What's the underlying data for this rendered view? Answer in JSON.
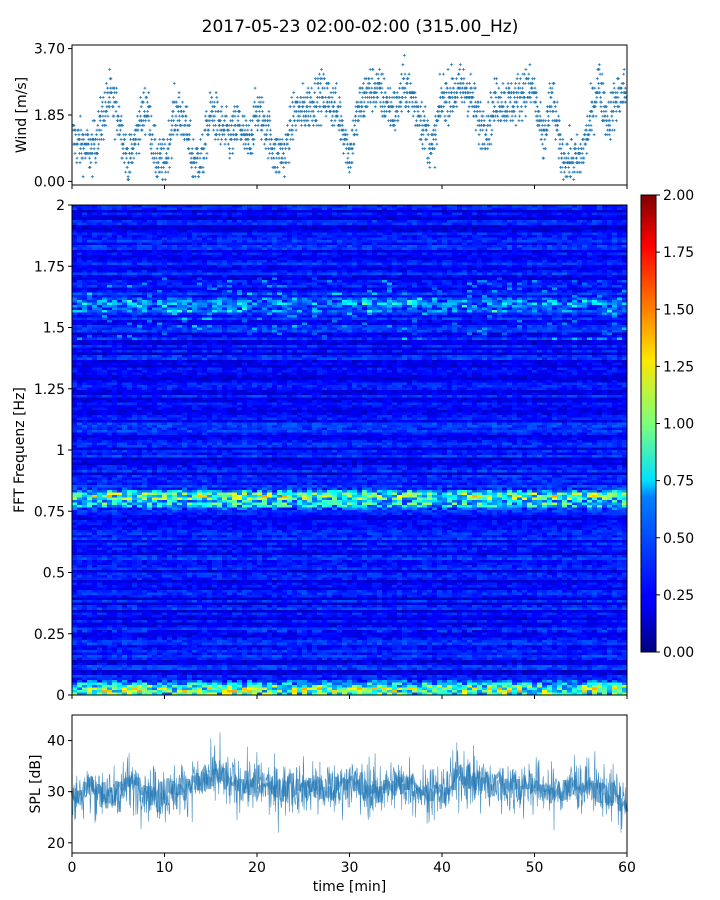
{
  "figure": {
    "title": "2017-05-23 02:00-02:00 (315.00_Hz)"
  },
  "chart_data": [
    {
      "type": "scatter",
      "panel": "wind",
      "ylabel": "Wind [m/s]",
      "xlabel": "",
      "xlim": [
        0,
        60
      ],
      "ylim": [
        -0.1,
        3.8
      ],
      "yticks": [
        "0.00",
        "1.85",
        "3.70"
      ],
      "ytick_values": [
        0.0,
        1.85,
        3.7
      ],
      "color": "#1f77b4",
      "marker": "+",
      "trend": {
        "x": [
          0,
          1,
          2,
          3,
          4,
          5,
          6,
          7,
          8,
          9,
          10,
          11,
          12,
          13,
          14,
          15,
          16,
          17,
          18,
          19,
          20,
          21,
          22,
          23,
          24,
          25,
          26,
          27,
          28,
          29,
          30,
          31,
          32,
          33,
          34,
          35,
          36,
          37,
          38,
          39,
          40,
          41,
          42,
          43,
          44,
          45,
          46,
          47,
          48,
          49,
          50,
          51,
          52,
          53,
          54,
          55,
          56,
          57,
          58,
          59,
          60
        ],
        "y": [
          1.2,
          1.0,
          0.8,
          1.6,
          2.4,
          1.8,
          0.4,
          1.4,
          2.2,
          0.6,
          0.5,
          1.9,
          1.8,
          0.6,
          0.6,
          2.0,
          1.5,
          1.2,
          1.6,
          1.0,
          2.0,
          1.5,
          0.7,
          0.8,
          1.9,
          2.0,
          2.2,
          2.4,
          2.2,
          1.8,
          0.7,
          2.0,
          2.5,
          2.6,
          2.2,
          1.9,
          2.7,
          2.2,
          1.6,
          0.8,
          2.3,
          2.4,
          2.6,
          2.5,
          1.7,
          1.5,
          2.3,
          2.2,
          2.2,
          2.6,
          2.5,
          1.0,
          2.4,
          0.7,
          0.6,
          0.6,
          1.5,
          2.8,
          1.7,
          2.3,
          2.5
        ]
      }
    },
    {
      "type": "heatmap",
      "panel": "spectrogram",
      "ylabel": "FFT Frequenz [Hz]",
      "xlabel": "",
      "xlim": [
        0,
        60
      ],
      "ylim": [
        0,
        2
      ],
      "yticks": [
        "0",
        "0.25",
        "0.5",
        "0.75",
        "1",
        "1.25",
        "1.5",
        "1.75",
        "2"
      ],
      "ytick_values": [
        0,
        0.25,
        0.5,
        0.75,
        1.0,
        1.25,
        1.5,
        1.75,
        2.0
      ],
      "colormap": "jet",
      "clim": [
        0,
        2
      ],
      "colorbar_ticks": [
        "0.00",
        "0.25",
        "0.50",
        "0.75",
        "1.00",
        "1.25",
        "1.50",
        "1.75",
        "2.00"
      ],
      "colorbar_tick_values": [
        0,
        0.25,
        0.5,
        0.75,
        1.0,
        1.25,
        1.5,
        1.75,
        2.0
      ],
      "background_level": 0.28,
      "bands": [
        {
          "freq": 0.81,
          "width": 0.03,
          "level": 1.0
        },
        {
          "freq": 0.78,
          "width": 0.025,
          "level": 0.75
        },
        {
          "freq": 1.6,
          "width": 0.03,
          "level": 0.55
        },
        {
          "freq": 1.57,
          "width": 0.015,
          "level": 0.5
        },
        {
          "freq": 0.265,
          "width": 0.006,
          "level": 0.55
        },
        {
          "freq": 0.02,
          "width": 0.04,
          "level": 1.0
        }
      ]
    },
    {
      "type": "line",
      "panel": "spl",
      "ylabel": "SPL [dB]",
      "xlabel": "time [min]",
      "xlim": [
        0,
        60
      ],
      "ylim": [
        18,
        45
      ],
      "yticks": [
        "20",
        "30",
        "40"
      ],
      "ytick_values": [
        20,
        30,
        40
      ],
      "xticks": [
        "0",
        "10",
        "20",
        "30",
        "40",
        "50",
        "60"
      ],
      "xtick_values": [
        0,
        10,
        20,
        30,
        40,
        50,
        60
      ],
      "color": "#1f77b4",
      "mean": {
        "x": [
          0,
          2,
          4,
          6,
          8,
          10,
          12,
          14,
          16,
          18,
          20,
          22,
          24,
          26,
          28,
          30,
          32,
          34,
          36,
          38,
          40,
          42,
          44,
          46,
          48,
          50,
          52,
          54,
          56,
          58,
          60
        ],
        "y": [
          28,
          31,
          29,
          32,
          30,
          29,
          31,
          32,
          33,
          31,
          32,
          30,
          31,
          31,
          30,
          32,
          30,
          31,
          32,
          30,
          30,
          33,
          32,
          31,
          31,
          31,
          30,
          31,
          31,
          30,
          28
        ]
      },
      "range_min": [
        22,
        24,
        25
      ],
      "range_max": [
        40,
        42,
        44
      ]
    }
  ]
}
